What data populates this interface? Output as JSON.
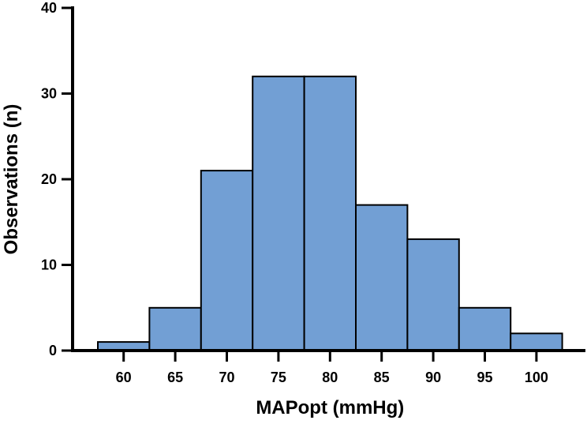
{
  "chart_data": {
    "type": "bar",
    "title": "",
    "xlabel": "MAPopt (mmHg)",
    "ylabel": "Observations (n)",
    "categories": [
      "60",
      "65",
      "70",
      "75",
      "80",
      "85",
      "90",
      "95",
      "100"
    ],
    "values": [
      1,
      5,
      21,
      32,
      32,
      17,
      13,
      5,
      2
    ],
    "ylim": [
      0,
      40
    ],
    "yticks": [
      "0",
      "10",
      "20",
      "30",
      "40"
    ],
    "bar_color": "#729fd4",
    "grid": false,
    "legend": "none"
  }
}
